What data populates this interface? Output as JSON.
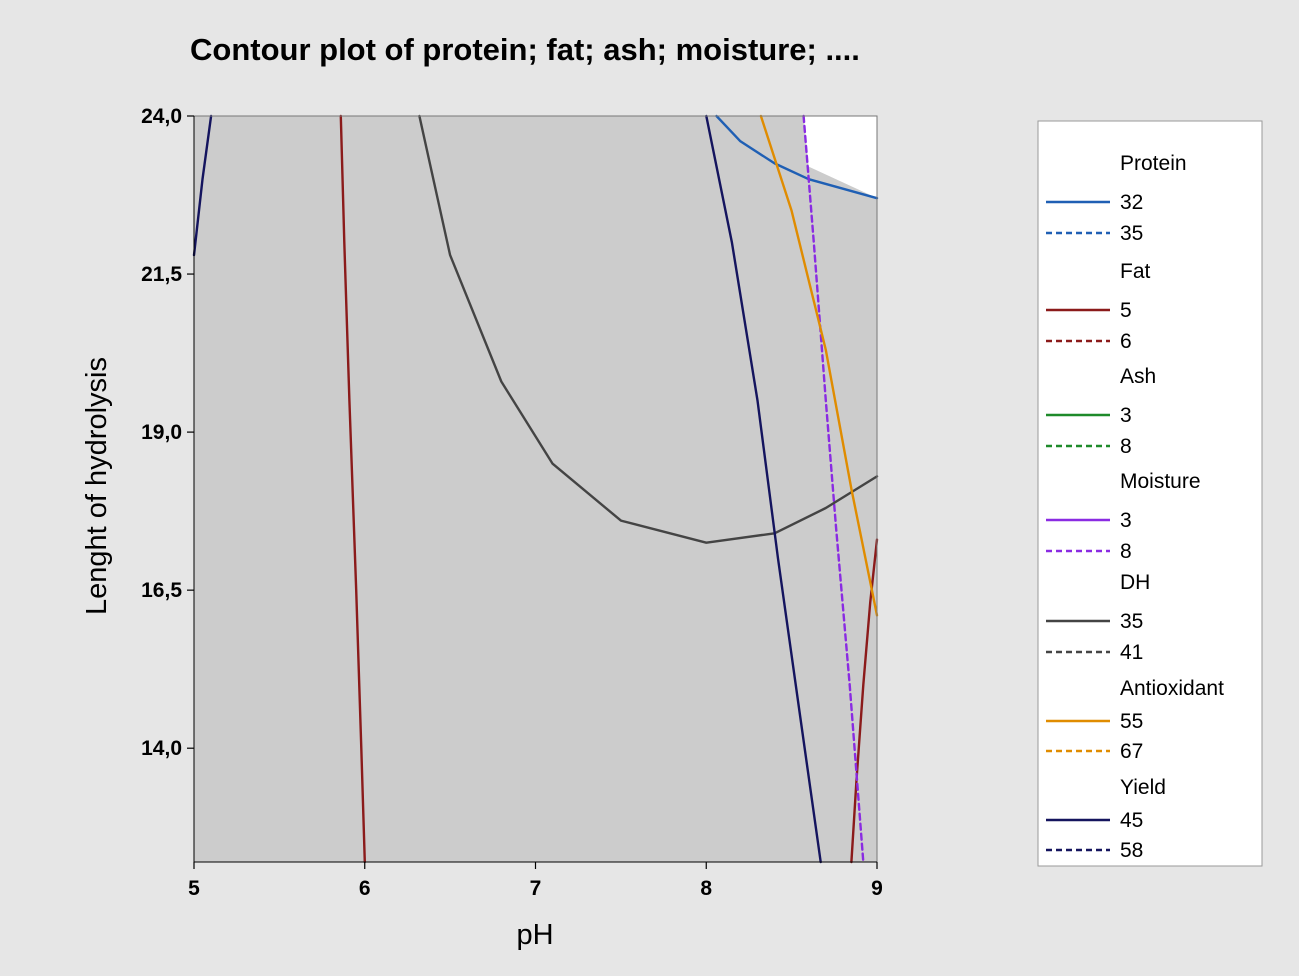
{
  "chart_data": {
    "type": "contour",
    "title": "Contour plot of protein; fat; ash; moisture; ....",
    "xlabel": "pH",
    "ylabel": "Lenght of hydrolysis",
    "xlim": [
      5,
      9
    ],
    "ylim": [
      12.2,
      24.0
    ],
    "xticks": [
      5,
      6,
      7,
      8,
      9
    ],
    "xtick_labels": [
      "5",
      "6",
      "7",
      "8",
      "9"
    ],
    "yticks": [
      24.0,
      21.5,
      19.0,
      16.5,
      14.0
    ],
    "ytick_labels": [
      "24,0",
      "21,5",
      "19,0",
      "16,5",
      "14,0"
    ],
    "colors": {
      "page_bg": "#e6e6e6",
      "feasible_region": "#ffffff",
      "infeasible_region": "#cccccc"
    },
    "feasible_region": [
      [
        8.57,
        24.0
      ],
      [
        9.0,
        24.0
      ],
      [
        9.0,
        22.7
      ],
      [
        8.6,
        23.2
      ]
    ],
    "legend": [
      {
        "name": "Protein",
        "color": "#1f5fb4",
        "levels": [
          "32",
          "35"
        ]
      },
      {
        "name": "Fat",
        "color": "#8b1a1a",
        "levels": [
          "5",
          "6"
        ]
      },
      {
        "name": "Ash",
        "color": "#1e8a2a",
        "levels": [
          "3",
          "8"
        ]
      },
      {
        "name": "Moisture",
        "color": "#8a2be2",
        "levels": [
          "3",
          "8"
        ]
      },
      {
        "name": "DH",
        "color": "#444444",
        "levels": [
          "35",
          "41"
        ]
      },
      {
        "name": "Antioxidant",
        "color": "#e08c00",
        "levels": [
          "55",
          "67"
        ]
      },
      {
        "name": "Yield",
        "color": "#14145e",
        "levels": [
          "45",
          "58"
        ]
      }
    ],
    "series": [
      {
        "variable": "Protein",
        "level": "32",
        "dash": false,
        "color": "#1f5fb4",
        "points": [
          [
            8.06,
            24.0
          ],
          [
            8.2,
            23.6
          ],
          [
            8.4,
            23.25
          ],
          [
            8.6,
            23.0
          ],
          [
            8.8,
            22.85
          ],
          [
            9.0,
            22.7
          ]
        ]
      },
      {
        "variable": "Fat",
        "level": "5",
        "dash": false,
        "color": "#8b1a1a",
        "points": [
          [
            5.86,
            24.0
          ],
          [
            5.88,
            22.0
          ],
          [
            5.91,
            19.5
          ],
          [
            5.95,
            16.5
          ],
          [
            5.98,
            14.0
          ],
          [
            6.0,
            12.2
          ]
        ]
      },
      {
        "variable": "Fat",
        "level": "5",
        "dash": false,
        "color": "#8b1a1a",
        "points": [
          [
            8.85,
            12.2
          ],
          [
            8.88,
            13.5
          ],
          [
            8.92,
            15.0
          ],
          [
            8.96,
            16.3
          ],
          [
            9.0,
            17.3
          ]
        ]
      },
      {
        "variable": "Moisture",
        "level": "8",
        "dash": true,
        "color": "#8a2be2",
        "points": [
          [
            8.57,
            24.0
          ],
          [
            8.63,
            22.0
          ],
          [
            8.7,
            19.5
          ],
          [
            8.76,
            17.5
          ],
          [
            8.84,
            15.0
          ],
          [
            8.92,
            12.2
          ]
        ]
      },
      {
        "variable": "DH",
        "level": "35",
        "dash": false,
        "color": "#444444",
        "points": [
          [
            6.32,
            24.0
          ],
          [
            6.5,
            21.8
          ],
          [
            6.8,
            19.8
          ],
          [
            7.1,
            18.5
          ],
          [
            7.5,
            17.6
          ],
          [
            8.0,
            17.25
          ],
          [
            8.4,
            17.4
          ],
          [
            8.7,
            17.8
          ],
          [
            9.0,
            18.3
          ]
        ]
      },
      {
        "variable": "Antioxidant",
        "level": "55",
        "dash": false,
        "color": "#e08c00",
        "points": [
          [
            8.32,
            24.0
          ],
          [
            8.5,
            22.5
          ],
          [
            8.7,
            20.3
          ],
          [
            8.85,
            18.1
          ],
          [
            9.0,
            16.1
          ]
        ]
      },
      {
        "variable": "Yield",
        "level": "45",
        "dash": false,
        "color": "#14145e",
        "points": [
          [
            5.0,
            21.8
          ],
          [
            5.05,
            23.0
          ],
          [
            5.1,
            24.0
          ]
        ]
      },
      {
        "variable": "Yield",
        "level": "45",
        "dash": false,
        "color": "#14145e",
        "points": [
          [
            8.0,
            24.0
          ],
          [
            8.15,
            22.0
          ],
          [
            8.3,
            19.5
          ],
          [
            8.42,
            17.0
          ],
          [
            8.55,
            14.5
          ],
          [
            8.67,
            12.2
          ]
        ]
      }
    ]
  }
}
